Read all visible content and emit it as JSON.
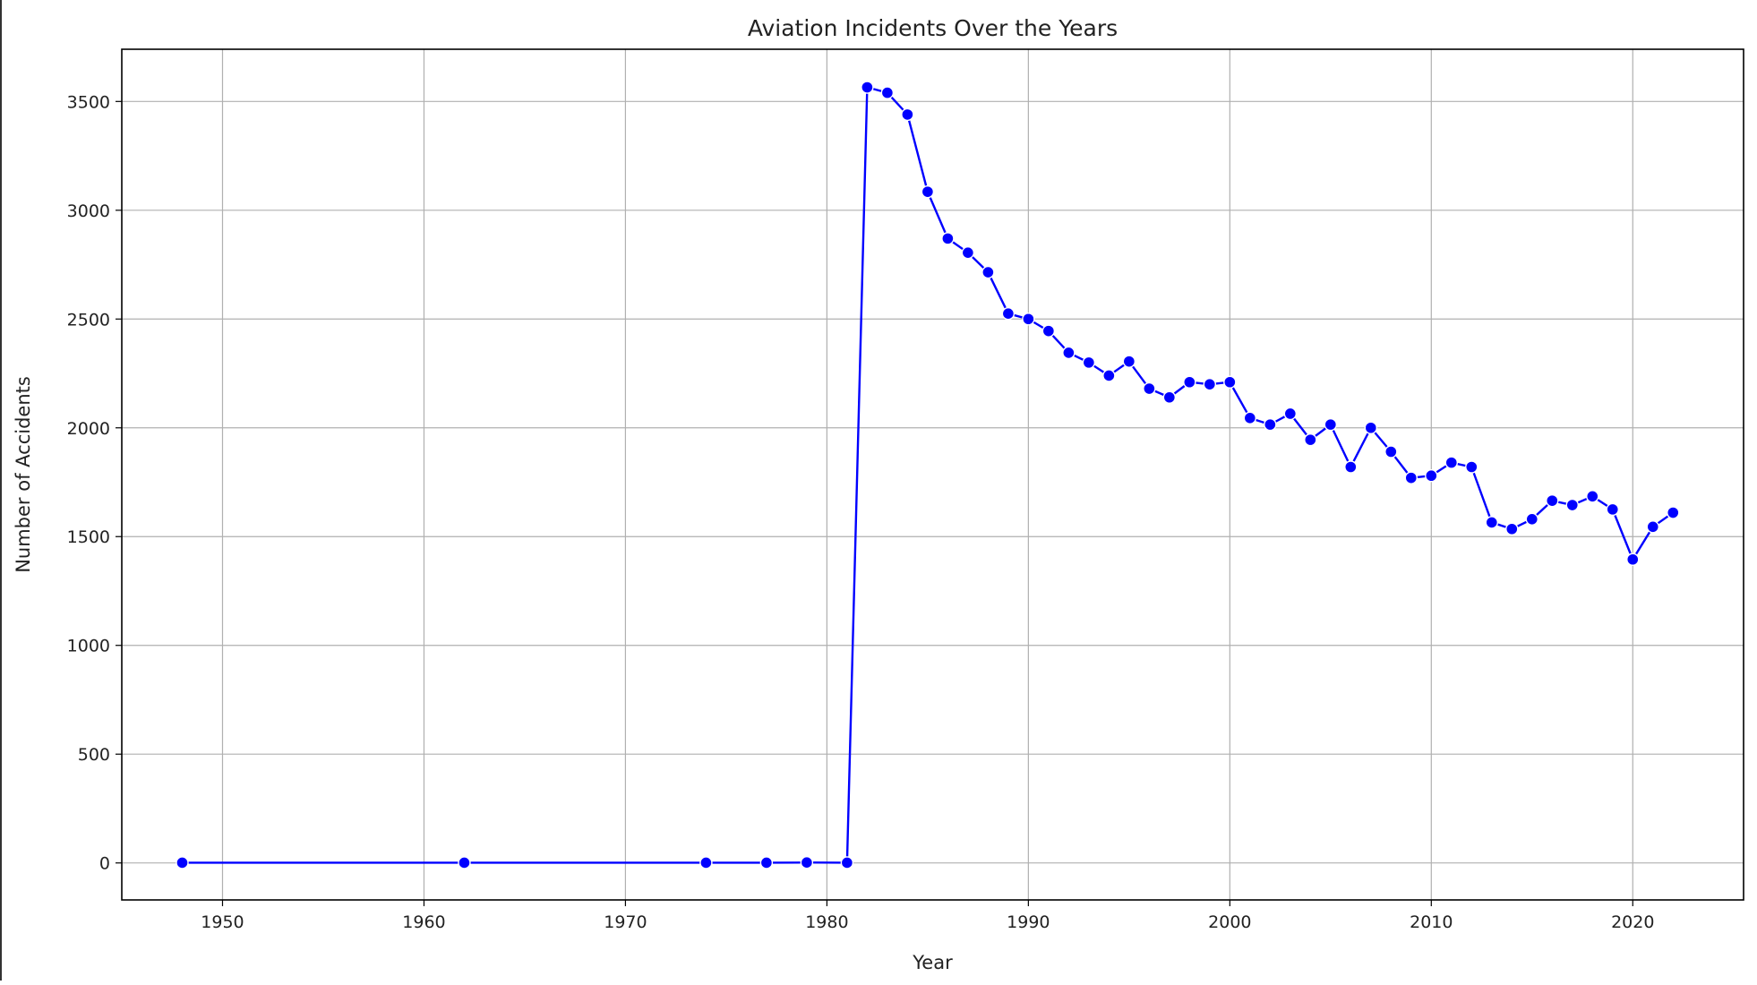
{
  "chart_data": {
    "type": "line",
    "title": "Aviation Incidents Over the Years",
    "xlabel": "Year",
    "ylabel": "Number of Accidents",
    "xlim": [
      1945,
      2025.5
    ],
    "ylim": [
      -170,
      3740
    ],
    "xticks": [
      1950,
      1960,
      1970,
      1980,
      1990,
      2000,
      2010,
      2020
    ],
    "yticks": [
      0,
      500,
      1000,
      1500,
      2000,
      2500,
      3000,
      3500
    ],
    "grid": true,
    "line_color": "#0000ff",
    "marker": "circle",
    "x": [
      1948,
      1962,
      1974,
      1977,
      1979,
      1981,
      1982,
      1983,
      1984,
      1985,
      1986,
      1987,
      1988,
      1989,
      1990,
      1991,
      1992,
      1993,
      1994,
      1995,
      1996,
      1997,
      1998,
      1999,
      2000,
      2001,
      2002,
      2003,
      2004,
      2005,
      2006,
      2007,
      2008,
      2009,
      2010,
      2011,
      2012,
      2013,
      2014,
      2015,
      2016,
      2017,
      2018,
      2019,
      2020,
      2021,
      2022
    ],
    "y": [
      1,
      1,
      1,
      1,
      2,
      1,
      3565,
      3540,
      3440,
      3085,
      2870,
      2805,
      2715,
      2525,
      2500,
      2445,
      2345,
      2300,
      2240,
      2305,
      2180,
      2140,
      2210,
      2200,
      2210,
      2045,
      2015,
      2065,
      1945,
      2015,
      1820,
      2000,
      1890,
      1770,
      1780,
      1840,
      1820,
      1565,
      1535,
      1580,
      1665,
      1645,
      1685,
      1625,
      1395,
      1545,
      1610
    ]
  }
}
